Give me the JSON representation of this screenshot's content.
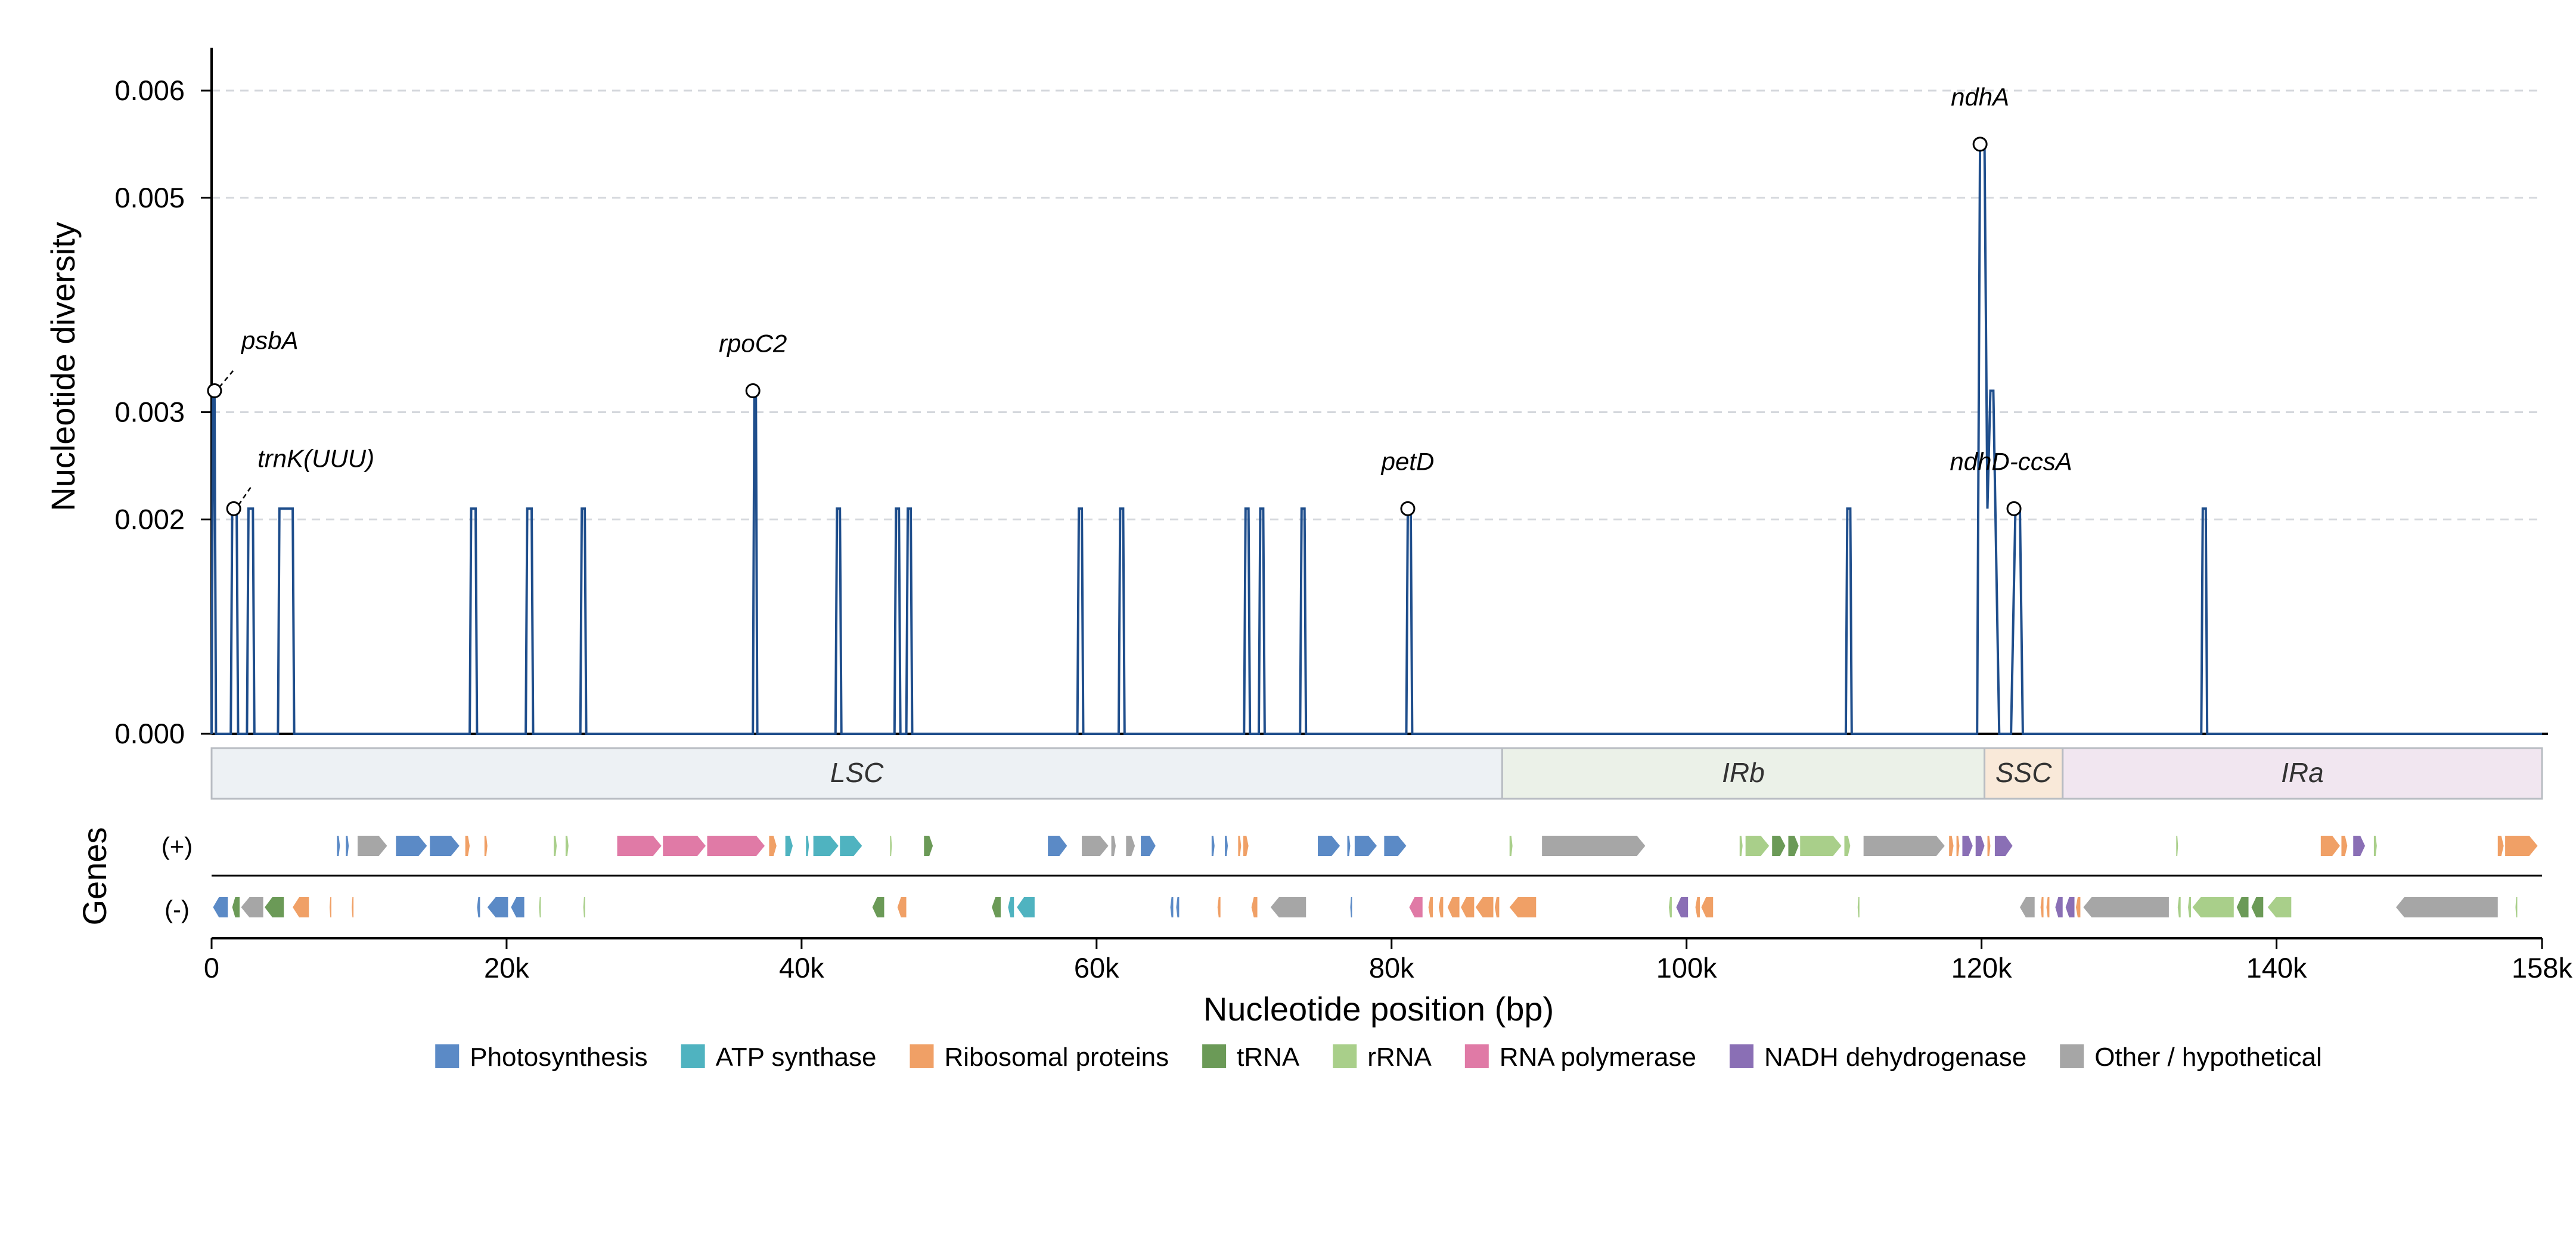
{
  "chart_data": {
    "type": "line",
    "title": "",
    "xlabel": "Nucleotide position (bp)",
    "ylabel": "Nucleotide diversity",
    "genes_label": "Genes",
    "xlim": [
      0,
      158000
    ],
    "ylim": [
      0,
      0.0064
    ],
    "x_ticks": [
      0,
      20000,
      40000,
      60000,
      80000,
      100000,
      120000,
      140000,
      158000
    ],
    "x_tick_labels": [
      "0",
      "20k",
      "40k",
      "60k",
      "80k",
      "100k",
      "120k",
      "140k",
      "158k"
    ],
    "y_ticks": [
      0,
      0.002,
      0.003,
      0.005,
      0.006
    ],
    "y_tick_labels": [
      "0.000",
      "0.002",
      "0.003",
      "0.005",
      "0.006"
    ],
    "grid": "horizontal dashed",
    "series": [
      {
        "color": "#1f4e8c",
        "peaks": [
          {
            "x0": 0,
            "x1": 300,
            "y": 0.0032
          },
          {
            "x0": 1300,
            "x1": 1800,
            "y": 0.0021
          },
          {
            "x0": 2400,
            "x1": 2900,
            "y": 0.0021
          },
          {
            "x0": 4500,
            "x1": 5600,
            "y": 0.0021
          },
          {
            "x0": 17500,
            "x1": 18000,
            "y": 0.0021
          },
          {
            "x0": 21300,
            "x1": 21800,
            "y": 0.0021
          },
          {
            "x0": 25000,
            "x1": 25400,
            "y": 0.0021
          },
          {
            "x0": 36700,
            "x1": 37000,
            "y": 0.0032
          },
          {
            "x0": 42300,
            "x1": 42700,
            "y": 0.0021
          },
          {
            "x0": 46300,
            "x1": 46700,
            "y": 0.0021
          },
          {
            "x0": 47100,
            "x1": 47500,
            "y": 0.0021
          },
          {
            "x0": 58700,
            "x1": 59100,
            "y": 0.0021
          },
          {
            "x0": 61500,
            "x1": 61900,
            "y": 0.0021
          },
          {
            "x0": 70000,
            "x1": 70400,
            "y": 0.0021
          },
          {
            "x0": 71000,
            "x1": 71400,
            "y": 0.0021
          },
          {
            "x0": 73800,
            "x1": 74200,
            "y": 0.0021
          },
          {
            "x0": 81000,
            "x1": 81400,
            "y": 0.0021
          },
          {
            "x0": 110800,
            "x1": 111200,
            "y": 0.0021
          },
          {
            "x0": 134900,
            "x1": 135300,
            "y": 0.0021
          }
        ],
        "complex_region": [
          [
            119700,
            0
          ],
          [
            119900,
            0.0055
          ],
          [
            120200,
            0.0055
          ],
          [
            120400,
            0.0021
          ],
          [
            120600,
            0.0032
          ],
          [
            120800,
            0.0032
          ],
          [
            121200,
            0
          ],
          [
            122000,
            0
          ],
          [
            122300,
            0.0021
          ],
          [
            122600,
            0.0021
          ],
          [
            122800,
            0
          ]
        ]
      }
    ],
    "annotations": [
      {
        "label": "psbA",
        "x": 200,
        "y": 0.0032
      },
      {
        "label": "trnK(UUU)",
        "x": 1500,
        "y": 0.0021
      },
      {
        "label": "rpoC2",
        "x": 36700,
        "y": 0.0032
      },
      {
        "label": "petD",
        "x": 81100,
        "y": 0.0021
      },
      {
        "label": "ndhA",
        "x": 119900,
        "y": 0.0055
      },
      {
        "label": "ndhD-ccsA",
        "x": 122200,
        "y": 0.0021
      }
    ],
    "regions": [
      {
        "label": "LSC",
        "start": 0,
        "end": 87500,
        "color": "#edf1f4"
      },
      {
        "label": "IRb",
        "start": 87500,
        "end": 120200,
        "color": "#ebf1e8"
      },
      {
        "label": "SSC",
        "start": 120200,
        "end": 125500,
        "color": "#f9e9d9"
      },
      {
        "label": "IRa",
        "start": 125500,
        "end": 158000,
        "color": "#f1e6f0"
      }
    ],
    "strands": [
      "(+)",
      "(-)"
    ],
    "categories_legend": [
      {
        "key": "photo",
        "label": "Photosynthesis",
        "color": "#5b8ac6"
      },
      {
        "key": "atp",
        "label": "ATP synthase",
        "color": "#4fb3c0"
      },
      {
        "key": "ribo",
        "label": "Ribosomal proteins",
        "color": "#f0a066"
      },
      {
        "key": "trna",
        "label": "tRNA",
        "color": "#6b9a57"
      },
      {
        "key": "rrna",
        "label": "rRNA",
        "color": "#a9cf8a"
      },
      {
        "key": "rnap",
        "label": "RNA polymerase",
        "color": "#e07aa6"
      },
      {
        "key": "ndh",
        "label": "NADH dehydrogenase",
        "color": "#8a6fb5"
      },
      {
        "key": "other",
        "label": "Other / hypothetical",
        "color": "#a6a6a6"
      }
    ],
    "genes_plus": [
      [
        "photo",
        8500,
        8700
      ],
      [
        "photo",
        9100,
        9300
      ],
      [
        "other",
        9900,
        11900
      ],
      [
        "photo",
        12500,
        14600
      ],
      [
        "photo",
        14800,
        16800
      ],
      [
        "ribo",
        17200,
        17500
      ],
      [
        "ribo",
        18500,
        18700
      ],
      [
        "rrna",
        23200,
        23400
      ],
      [
        "rrna",
        24000,
        24200
      ],
      [
        "rnap",
        27500,
        30500
      ],
      [
        "rnap",
        30600,
        33500
      ],
      [
        "rnap",
        33600,
        37500
      ],
      [
        "ribo",
        37800,
        38300
      ],
      [
        "atp",
        38900,
        39400
      ],
      [
        "atp",
        40300,
        40500
      ],
      [
        "atp",
        40800,
        42500
      ],
      [
        "atp",
        42600,
        44100
      ],
      [
        "trna",
        48300,
        48900
      ],
      [
        "rrna",
        46000,
        46100
      ],
      [
        "photo",
        56700,
        58000
      ],
      [
        "other",
        59000,
        60800
      ],
      [
        "other",
        61000,
        61300
      ],
      [
        "other",
        62000,
        62600
      ],
      [
        "photo",
        63000,
        64000
      ],
      [
        "photo",
        67800,
        68000
      ],
      [
        "photo",
        68700,
        68900
      ],
      [
        "ribo",
        69600,
        69800
      ],
      [
        "ribo",
        69950,
        70300
      ],
      [
        "photo",
        75000,
        76500
      ],
      [
        "photo",
        77000,
        77200
      ],
      [
        "photo",
        77500,
        79000
      ],
      [
        "photo",
        79500,
        81000
      ],
      [
        "rrna",
        88000,
        88200
      ],
      [
        "other",
        90200,
        97200
      ],
      [
        "rrna",
        103600,
        103800
      ],
      [
        "rrna",
        104000,
        105600
      ],
      [
        "trna",
        105800,
        106700
      ],
      [
        "trna",
        106900,
        107600
      ],
      [
        "rrna",
        107700,
        110500
      ],
      [
        "rrna",
        110700,
        111100
      ],
      [
        "other",
        112000,
        117500
      ],
      [
        "ribo",
        117800,
        118100
      ],
      [
        "ribo",
        118300,
        118500
      ],
      [
        "ndh",
        118700,
        119400
      ],
      [
        "ndh",
        119600,
        120200
      ],
      [
        "ribo",
        120400,
        120600
      ],
      [
        "ndh",
        120900,
        122100
      ],
      [
        "rrna",
        133200,
        133300
      ],
      [
        "ribo",
        143000,
        144300
      ],
      [
        "ribo",
        144400,
        144800
      ],
      [
        "ndh",
        145200,
        146000
      ],
      [
        "rrna",
        146600,
        146800
      ],
      [
        "ribo",
        155000,
        155400
      ],
      [
        "ribo",
        155500,
        157700
      ]
    ],
    "genes_minus": [
      [
        "photo",
        100,
        1100
      ],
      [
        "trna",
        1400,
        1900
      ],
      [
        "other",
        2000,
        3500
      ],
      [
        "trna",
        3600,
        4900
      ],
      [
        "ribo",
        5500,
        6600
      ],
      [
        "ribo",
        8000,
        8100
      ],
      [
        "ribo",
        9500,
        9600
      ],
      [
        "photo",
        18000,
        18200
      ],
      [
        "photo",
        18700,
        20100
      ],
      [
        "photo",
        20300,
        21200
      ],
      [
        "rrna",
        22200,
        22300
      ],
      [
        "rrna",
        25200,
        25300
      ],
      [
        "trna",
        44800,
        45600
      ],
      [
        "ribo",
        46500,
        47100
      ],
      [
        "trna",
        52900,
        53500
      ],
      [
        "atp",
        54000,
        54400
      ],
      [
        "atp",
        54600,
        55800
      ],
      [
        "photo",
        65000,
        65200
      ],
      [
        "photo",
        65400,
        65600
      ],
      [
        "ribo",
        68200,
        68400
      ],
      [
        "ribo",
        70500,
        70900
      ],
      [
        "other",
        71800,
        74200
      ],
      [
        "photo",
        77200,
        77300
      ],
      [
        "rnap",
        81200,
        82100
      ],
      [
        "ribo",
        82500,
        82800
      ],
      [
        "ribo",
        83200,
        83500
      ],
      [
        "ribo",
        83800,
        84600
      ],
      [
        "ribo",
        84700,
        85600
      ],
      [
        "ribo",
        85700,
        86900
      ],
      [
        "ribo",
        87000,
        87300
      ],
      [
        "ribo",
        88000,
        89800
      ],
      [
        "rrna",
        98800,
        99000
      ],
      [
        "ndh",
        99300,
        100100
      ],
      [
        "ribo",
        100600,
        100900
      ],
      [
        "ribo",
        101000,
        101800
      ],
      [
        "rrna",
        111600,
        111700
      ],
      [
        "other",
        122600,
        123600
      ],
      [
        "ribo",
        124000,
        124200
      ],
      [
        "ribo",
        124400,
        124600
      ],
      [
        "ndh",
        125000,
        125500
      ],
      [
        "ndh",
        125700,
        126300
      ],
      [
        "ribo",
        126400,
        126700
      ],
      [
        "other",
        126900,
        132700
      ],
      [
        "rrna",
        133300,
        133500
      ],
      [
        "rrna",
        134000,
        134200
      ],
      [
        "rrna",
        134300,
        137100
      ],
      [
        "trna",
        137300,
        138100
      ],
      [
        "trna",
        138300,
        139100
      ],
      [
        "rrna",
        139400,
        141000
      ],
      [
        "other",
        148100,
        155000
      ],
      [
        "rrna",
        156200,
        156300
      ]
    ]
  }
}
